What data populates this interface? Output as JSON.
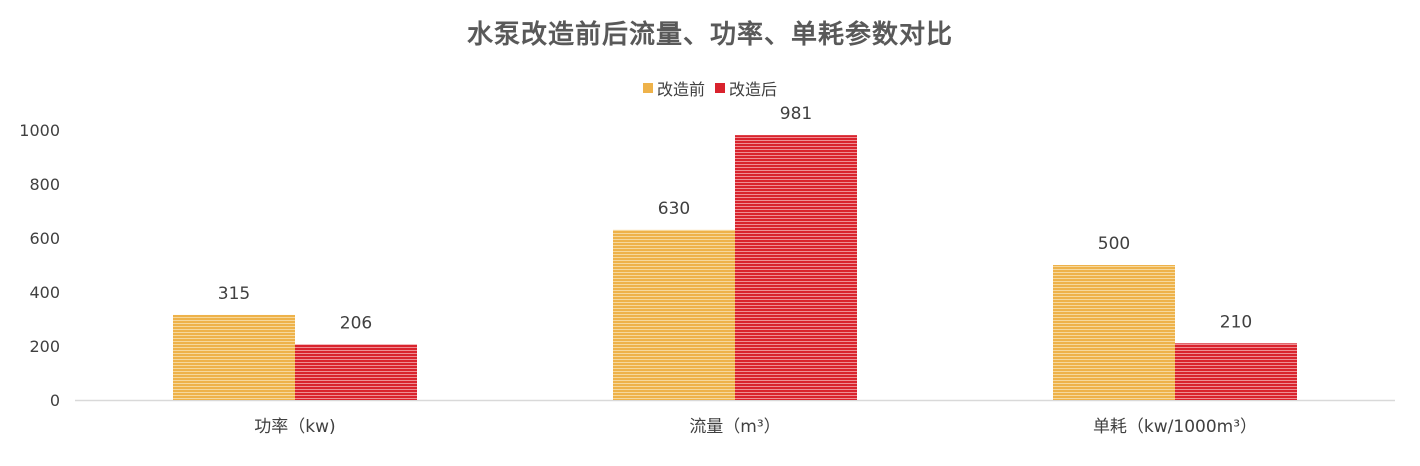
{
  "chart_data": {
    "type": "bar",
    "title": "水泵改造前后流量、功率、单耗参数对比",
    "categories": [
      "功率（kw)",
      "流量（m³）",
      "单耗（kw/1000m³）"
    ],
    "series": [
      {
        "name": "改造前",
        "values": [
          315,
          630,
          500
        ],
        "color": "#EEB24A",
        "stripe": "#F6D89C"
      },
      {
        "name": "改造后",
        "values": [
          206,
          981,
          210
        ],
        "color": "#D9232D",
        "stripe": "#EE8E94"
      }
    ],
    "y_ticks": [
      "0",
      "200",
      "400",
      "600",
      "800",
      "1000"
    ],
    "ylim": [
      0,
      1000
    ],
    "grid": false,
    "legend_position": "top"
  }
}
